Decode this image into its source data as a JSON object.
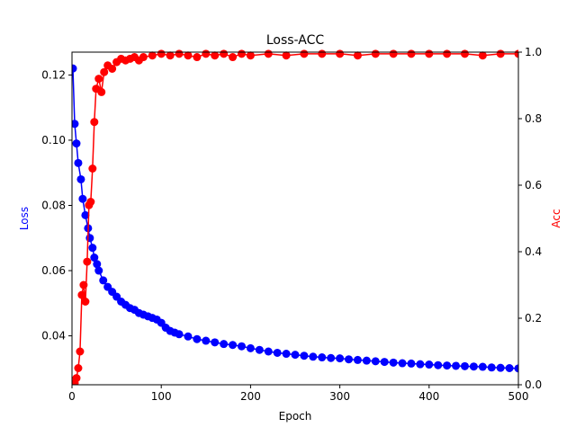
{
  "chart_data": {
    "type": "line",
    "title": "Loss-ACC",
    "xlabel": "Epoch",
    "ylabel_left": "Loss",
    "ylabel_right": "Acc",
    "xlim": [
      0,
      500
    ],
    "ylim_left": [
      0.025,
      0.127
    ],
    "ylim_right": [
      0.0,
      1.0
    ],
    "x_ticks": [
      0,
      100,
      200,
      300,
      400,
      500
    ],
    "y_left_ticks": [
      0.04,
      0.06,
      0.08,
      0.1,
      0.12
    ],
    "y_right_ticks": [
      0.0,
      0.2,
      0.4,
      0.6,
      0.8,
      1.0
    ],
    "grid": false,
    "legend": "none",
    "series": [
      {
        "axis": "left",
        "color": "#0000ff",
        "marker": "circle",
        "x": [
          1,
          3,
          5,
          7,
          10,
          12,
          15,
          18,
          20,
          23,
          25,
          28,
          30,
          35,
          40,
          45,
          50,
          55,
          60,
          65,
          70,
          75,
          80,
          85,
          90,
          95,
          100,
          105,
          110,
          115,
          120,
          130,
          140,
          150,
          160,
          170,
          180,
          190,
          200,
          210,
          220,
          230,
          240,
          250,
          260,
          270,
          280,
          290,
          300,
          310,
          320,
          330,
          340,
          350,
          360,
          370,
          380,
          390,
          400,
          410,
          420,
          430,
          440,
          450,
          460,
          470,
          480,
          490,
          500
        ],
        "y": [
          0.122,
          0.105,
          0.099,
          0.093,
          0.088,
          0.082,
          0.077,
          0.073,
          0.07,
          0.067,
          0.064,
          0.062,
          0.06,
          0.057,
          0.055,
          0.0535,
          0.052,
          0.0505,
          0.0495,
          0.0485,
          0.048,
          0.047,
          0.0465,
          0.046,
          0.0455,
          0.045,
          0.044,
          0.0425,
          0.0415,
          0.041,
          0.0405,
          0.0398,
          0.039,
          0.0385,
          0.038,
          0.0375,
          0.0372,
          0.0368,
          0.0362,
          0.0357,
          0.0352,
          0.0348,
          0.0345,
          0.0342,
          0.0339,
          0.0336,
          0.0334,
          0.0332,
          0.0331,
          0.0328,
          0.0326,
          0.0324,
          0.0322,
          0.032,
          0.0318,
          0.0316,
          0.0315,
          0.0313,
          0.0312,
          0.031,
          0.0309,
          0.0308,
          0.0307,
          0.0306,
          0.0305,
          0.0303,
          0.0302,
          0.0301,
          0.03
        ]
      },
      {
        "axis": "right",
        "color": "#ff0000",
        "marker": "circle",
        "x": [
          1,
          3,
          5,
          7,
          9,
          11,
          13,
          15,
          17,
          19,
          21,
          23,
          25,
          27,
          30,
          33,
          36,
          40,
          45,
          50,
          55,
          60,
          65,
          70,
          75,
          80,
          90,
          100,
          110,
          120,
          130,
          140,
          150,
          160,
          170,
          180,
          190,
          200,
          220,
          240,
          260,
          280,
          300,
          320,
          340,
          360,
          380,
          400,
          420,
          440,
          460,
          480,
          500
        ],
        "y": [
          0.0,
          0.005,
          0.02,
          0.05,
          0.1,
          0.27,
          0.3,
          0.25,
          0.37,
          0.54,
          0.55,
          0.65,
          0.79,
          0.89,
          0.92,
          0.88,
          0.94,
          0.96,
          0.95,
          0.97,
          0.98,
          0.975,
          0.98,
          0.985,
          0.975,
          0.985,
          0.99,
          0.995,
          0.99,
          0.995,
          0.99,
          0.985,
          0.995,
          0.99,
          0.995,
          0.985,
          0.995,
          0.99,
          0.995,
          0.99,
          0.995,
          0.995,
          0.995,
          0.99,
          0.995,
          0.995,
          0.995,
          0.995,
          0.995,
          0.995,
          0.99,
          0.995,
          0.995
        ]
      }
    ]
  }
}
